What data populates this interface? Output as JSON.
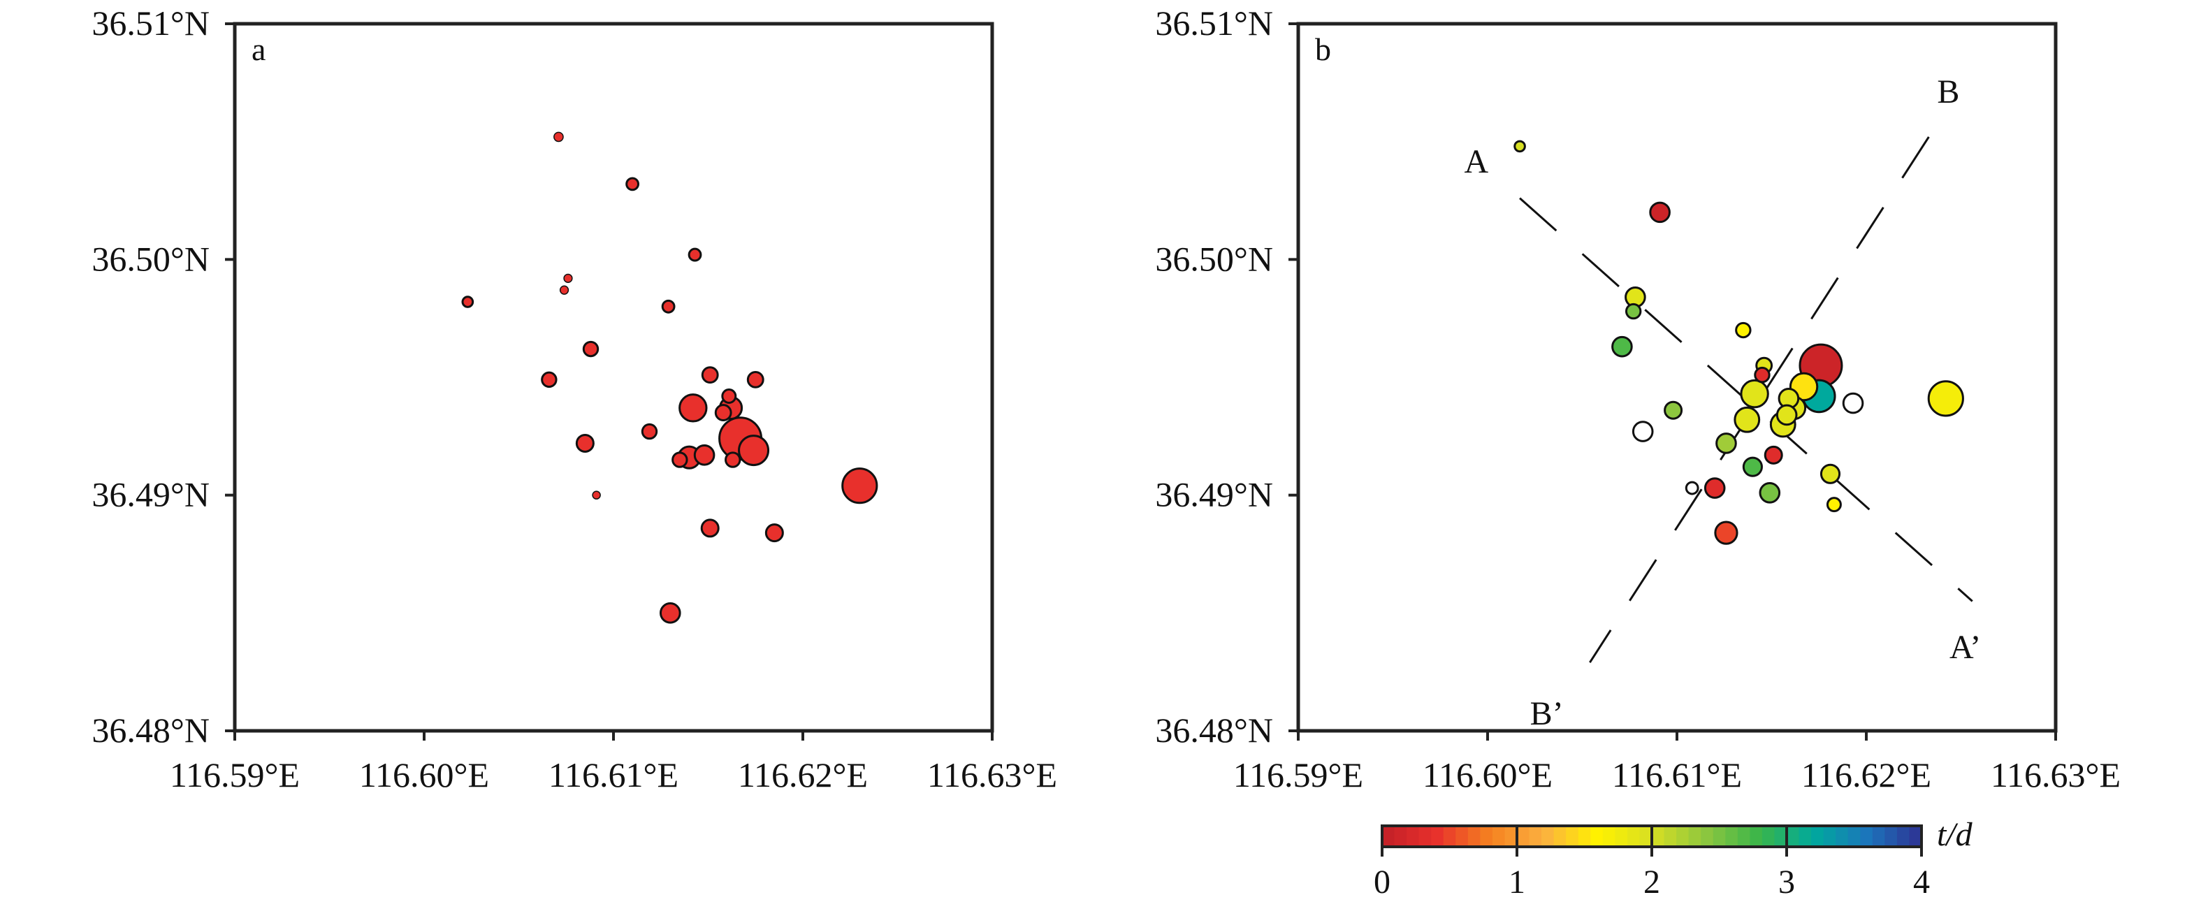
{
  "chart_data": [
    {
      "type": "scatter",
      "panel_label": "a",
      "xlim": [
        116.59,
        116.63
      ],
      "ylim": [
        36.48,
        36.51
      ],
      "x_ticks": [
        "116.59°E",
        "116.60°E",
        "116.61°E",
        "116.62°E",
        "116.63°E"
      ],
      "y_ticks": [
        "36.48°N",
        "36.49°N",
        "36.50°N",
        "36.51°N"
      ],
      "marker_color": "#e8302c",
      "points": [
        {
          "lon": 116.6071,
          "lat": 36.5052,
          "size": 1
        },
        {
          "lon": 116.611,
          "lat": 36.5032,
          "size": 1.5
        },
        {
          "lon": 116.6143,
          "lat": 36.5002,
          "size": 1.5
        },
        {
          "lon": 116.6023,
          "lat": 36.4982,
          "size": 1.2
        },
        {
          "lon": 116.6076,
          "lat": 36.4992,
          "size": 0.8
        },
        {
          "lon": 116.6074,
          "lat": 36.4987,
          "size": 0.8
        },
        {
          "lon": 116.6129,
          "lat": 36.498,
          "size": 1.5
        },
        {
          "lon": 116.6088,
          "lat": 36.4962,
          "size": 2
        },
        {
          "lon": 116.6066,
          "lat": 36.4949,
          "size": 2
        },
        {
          "lon": 116.6151,
          "lat": 36.4951,
          "size": 2.2
        },
        {
          "lon": 116.6175,
          "lat": 36.4949,
          "size": 2.2
        },
        {
          "lon": 116.6161,
          "lat": 36.4942,
          "size": 1.8
        },
        {
          "lon": 116.6142,
          "lat": 36.4937,
          "size": 4.5
        },
        {
          "lon": 116.6162,
          "lat": 36.4937,
          "size": 3.5
        },
        {
          "lon": 116.6158,
          "lat": 36.4935,
          "size": 2.2
        },
        {
          "lon": 116.6119,
          "lat": 36.4927,
          "size": 2
        },
        {
          "lon": 116.6085,
          "lat": 36.4922,
          "size": 2.5
        },
        {
          "lon": 116.6167,
          "lat": 36.4924,
          "size": 7.5
        },
        {
          "lon": 116.6174,
          "lat": 36.4919,
          "size": 5
        },
        {
          "lon": 116.6135,
          "lat": 36.4915,
          "size": 2
        },
        {
          "lon": 116.614,
          "lat": 36.4916,
          "size": 3.5
        },
        {
          "lon": 116.6148,
          "lat": 36.4917,
          "size": 3
        },
        {
          "lon": 116.6163,
          "lat": 36.4915,
          "size": 2
        },
        {
          "lon": 116.623,
          "lat": 36.4904,
          "size": 6
        },
        {
          "lon": 116.6091,
          "lat": 36.49,
          "size": 0.7
        },
        {
          "lon": 116.6151,
          "lat": 36.4886,
          "size": 2.5
        },
        {
          "lon": 116.6185,
          "lat": 36.4884,
          "size": 2.5
        },
        {
          "lon": 116.613,
          "lat": 36.485,
          "size": 3
        }
      ]
    },
    {
      "type": "scatter",
      "panel_label": "b",
      "xlim": [
        116.59,
        116.63
      ],
      "ylim": [
        36.48,
        36.51
      ],
      "x_ticks": [
        "116.59°E",
        "116.60°E",
        "116.61°E",
        "116.62°E",
        "116.63°E"
      ],
      "y_ticks": [
        "36.48°N",
        "36.49°N",
        "36.50°N",
        "36.51°N"
      ],
      "color_variable": "t/d",
      "profiles": [
        {
          "start_label": "A",
          "end_label": "A’",
          "start": [
            116.6017,
            36.5026
          ],
          "end": [
            116.6256,
            36.4855
          ]
        },
        {
          "start_label": "B",
          "end_label": "B’",
          "start": [
            116.6233,
            36.5052
          ],
          "end": [
            116.6054,
            36.4829
          ]
        }
      ],
      "points": [
        {
          "lon": 116.6017,
          "lat": 36.5048,
          "size": 1.2,
          "t": 2.0
        },
        {
          "lon": 116.6091,
          "lat": 36.502,
          "size": 3,
          "t": 0.1
        },
        {
          "lon": 116.6078,
          "lat": 36.4984,
          "size": 3,
          "t": 1.9
        },
        {
          "lon": 116.6077,
          "lat": 36.4978,
          "size": 2,
          "t": 2.5
        },
        {
          "lon": 116.6071,
          "lat": 36.4963,
          "size": 3,
          "t": 2.7
        },
        {
          "lon": 116.6135,
          "lat": 36.497,
          "size": 2,
          "t": 1.6
        },
        {
          "lon": 116.6176,
          "lat": 36.4955,
          "size": 7.5,
          "t": 0.1
        },
        {
          "lon": 116.6145,
          "lat": 36.4951,
          "size": 2,
          "t": 0.3
        },
        {
          "lon": 116.6146,
          "lat": 36.4955,
          "size": 2.2,
          "t": 1.9
        },
        {
          "lon": 116.6167,
          "lat": 36.4946,
          "size": 4.5,
          "t": 1.5
        },
        {
          "lon": 116.6141,
          "lat": 36.4943,
          "size": 4.5,
          "t": 1.9
        },
        {
          "lon": 116.6175,
          "lat": 36.4942,
          "size": 5.5,
          "t": 3.2
        },
        {
          "lon": 116.6159,
          "lat": 36.4941,
          "size": 3,
          "t": 1.9
        },
        {
          "lon": 116.6162,
          "lat": 36.4937,
          "size": 3.5,
          "t": 1.9
        },
        {
          "lon": 116.6193,
          "lat": 36.4939,
          "size": 3,
          "t": 4.5
        },
        {
          "lon": 116.6242,
          "lat": 36.4941,
          "size": 6,
          "t": 1.7
        },
        {
          "lon": 116.6158,
          "lat": 36.4934,
          "size": 3,
          "t": 1.9
        },
        {
          "lon": 116.6098,
          "lat": 36.4936,
          "size": 2.5,
          "t": 2.4
        },
        {
          "lon": 116.6137,
          "lat": 36.4932,
          "size": 4,
          "t": 1.9
        },
        {
          "lon": 116.6156,
          "lat": 36.493,
          "size": 4,
          "t": 1.9
        },
        {
          "lon": 116.6082,
          "lat": 36.4927,
          "size": 3,
          "t": 4.5
        },
        {
          "lon": 116.6126,
          "lat": 36.4922,
          "size": 3,
          "t": 2.3
        },
        {
          "lon": 116.6151,
          "lat": 36.4917,
          "size": 2.5,
          "t": 0.3
        },
        {
          "lon": 116.614,
          "lat": 36.4912,
          "size": 2.8,
          "t": 2.7
        },
        {
          "lon": 116.6181,
          "lat": 36.4909,
          "size": 2.8,
          "t": 1.9
        },
        {
          "lon": 116.6108,
          "lat": 36.4903,
          "size": 1.5,
          "t": 4.5
        },
        {
          "lon": 116.612,
          "lat": 36.4903,
          "size": 3,
          "t": 0.3
        },
        {
          "lon": 116.6149,
          "lat": 36.4901,
          "size": 3,
          "t": 2.5
        },
        {
          "lon": 116.6183,
          "lat": 36.4896,
          "size": 1.8,
          "t": 1.6
        },
        {
          "lon": 116.6126,
          "lat": 36.4884,
          "size": 3.5,
          "t": 0.5
        }
      ],
      "colorbar": {
        "label": "t/d",
        "ticks": [
          "0",
          "1",
          "2",
          "3",
          "4"
        ],
        "range": [
          0,
          4
        ],
        "colors": [
          "#c22027",
          "#e8302c",
          "#f58220",
          "#fbb040",
          "#fff200",
          "#d7df23",
          "#8dc63f",
          "#39b54a",
          "#00a99d",
          "#1c75bc",
          "#2e3192"
        ]
      }
    }
  ]
}
